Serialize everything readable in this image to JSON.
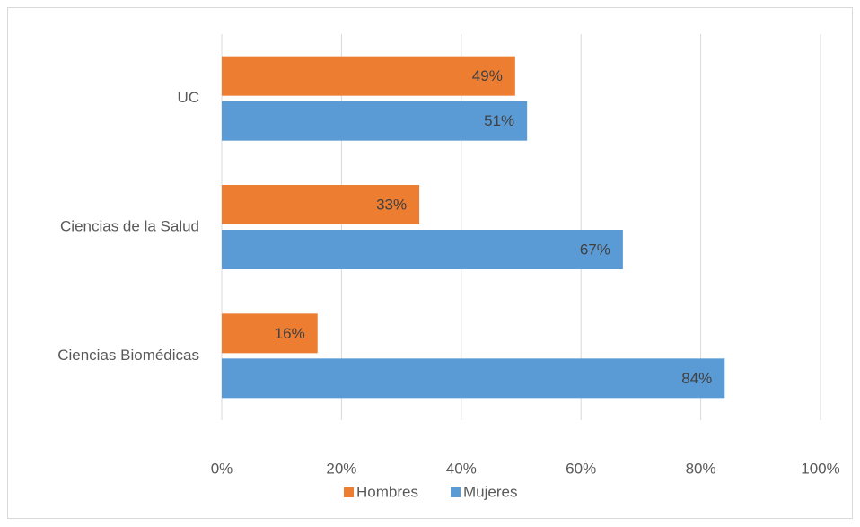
{
  "chart_data": {
    "type": "bar",
    "orientation": "horizontal",
    "categories": [
      "UC",
      "Ciencias de la Salud",
      "Ciencias Biomédicas"
    ],
    "series": [
      {
        "name": "Hombres",
        "color": "#ed7d31",
        "values": [
          49,
          33,
          16
        ],
        "value_labels": [
          "49%",
          "33%",
          "16%"
        ]
      },
      {
        "name": "Mujeres",
        "color": "#5b9bd5",
        "values": [
          51,
          67,
          84
        ],
        "value_labels": [
          "51%",
          "67%",
          "84%"
        ]
      }
    ],
    "xlim": [
      0,
      100
    ],
    "xticks": [
      {
        "value": 0,
        "label": "0%"
      },
      {
        "value": 20,
        "label": "20%"
      },
      {
        "value": 40,
        "label": "40%"
      },
      {
        "value": 60,
        "label": "60%"
      },
      {
        "value": 80,
        "label": "80%"
      },
      {
        "value": 100,
        "label": "100%"
      }
    ],
    "grid": true,
    "legend": "bottom"
  }
}
